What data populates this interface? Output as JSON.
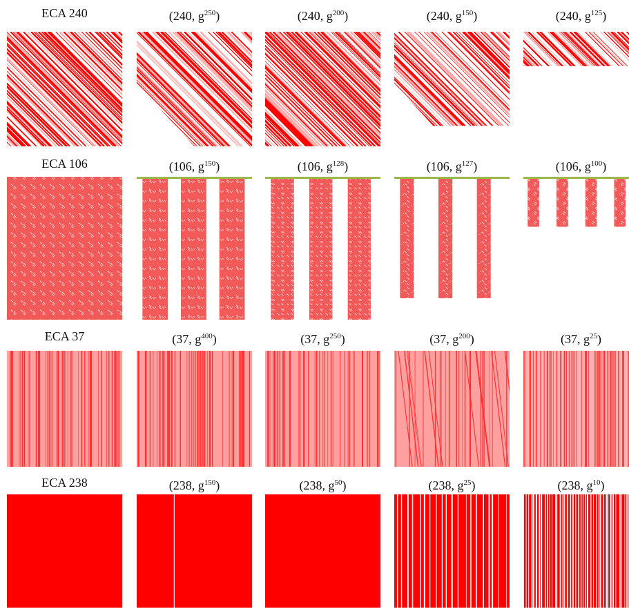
{
  "rows": [
    {
      "panels": [
        {
          "label": "ECA 240"
        },
        {
          "base": "(240, g",
          "exponent": "250",
          "close": ")"
        },
        {
          "base": "(240, g",
          "exponent": "200",
          "close": ")"
        },
        {
          "base": "(240, g",
          "exponent": "150",
          "close": ")"
        },
        {
          "base": "(240, g",
          "exponent": "125",
          "close": ")"
        }
      ]
    },
    {
      "panels": [
        {
          "label": "ECA 106"
        },
        {
          "base": "(106, g",
          "exponent": "150",
          "close": ")"
        },
        {
          "base": "(106, g",
          "exponent": "128",
          "close": ")"
        },
        {
          "base": "(106, g",
          "exponent": "127",
          "close": ")"
        },
        {
          "base": "(106, g",
          "exponent": "100",
          "close": ")"
        }
      ]
    },
    {
      "panels": [
        {
          "label": "ECA 37"
        },
        {
          "base": "(37, g",
          "exponent": "400",
          "close": ")"
        },
        {
          "base": "(37, g",
          "exponent": "250",
          "close": ")"
        },
        {
          "base": "(37, g",
          "exponent": "200",
          "close": ")"
        },
        {
          "base": "(37, g",
          "exponent": "25",
          "close": ")"
        }
      ]
    },
    {
      "panels": [
        {
          "label": "ECA 238"
        },
        {
          "base": "(238, g",
          "exponent": "150",
          "close": ")"
        },
        {
          "base": "(238, g",
          "exponent": "50",
          "close": ")"
        },
        {
          "base": "(238, g",
          "exponent": "25",
          "close": ")"
        },
        {
          "base": "(238, g",
          "exponent": "10",
          "close": ")"
        }
      ]
    }
  ]
}
